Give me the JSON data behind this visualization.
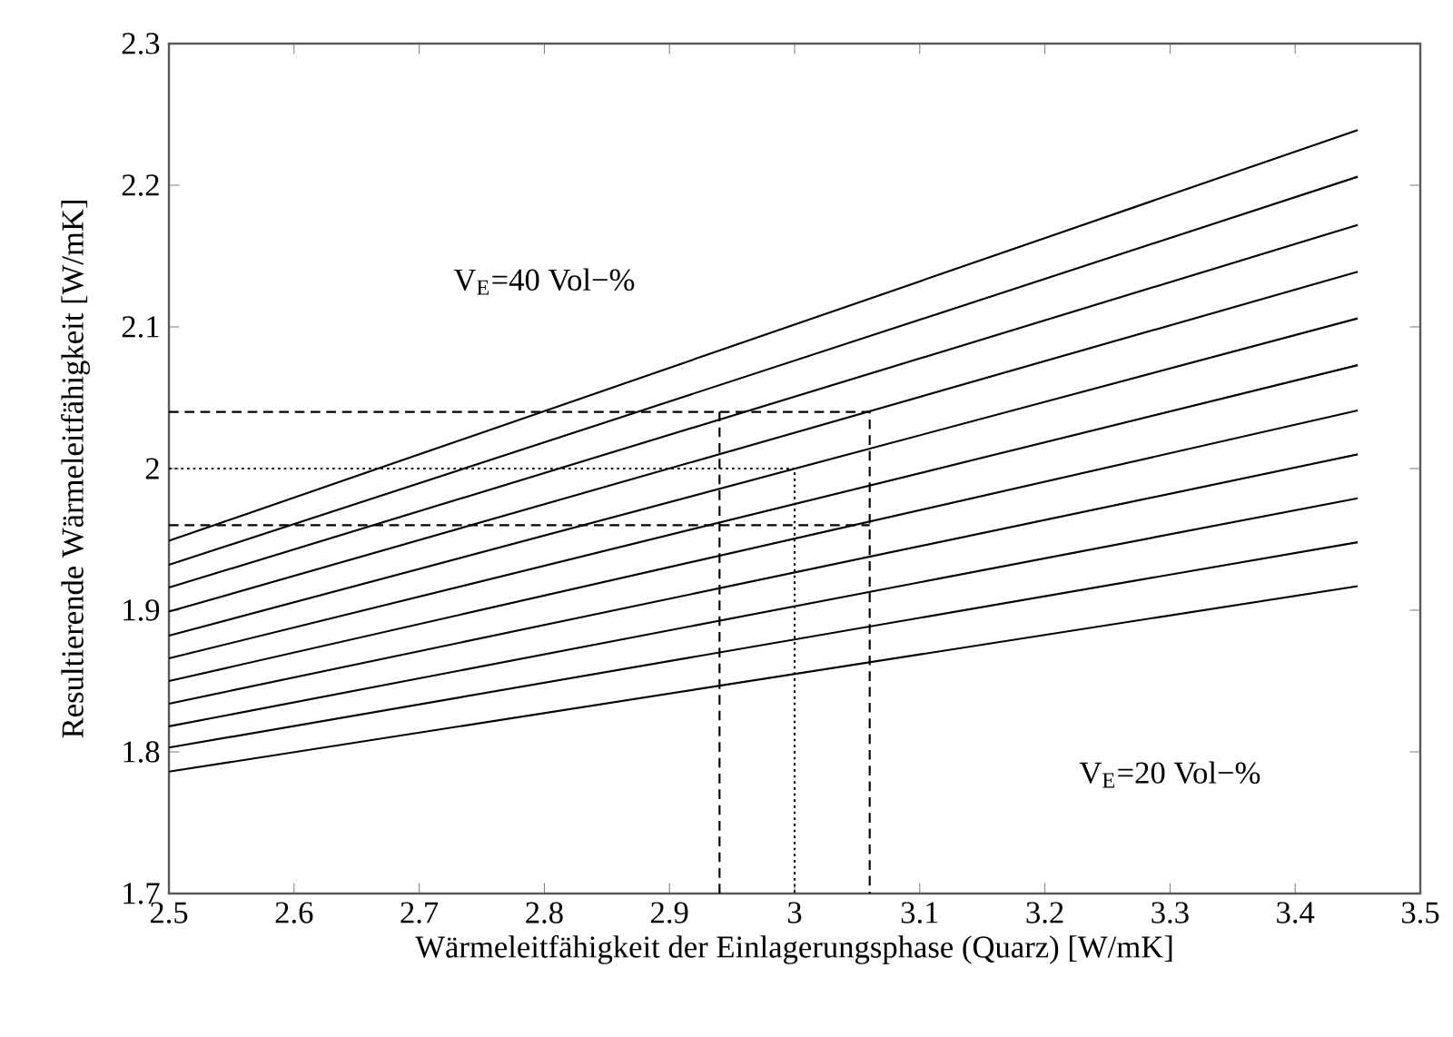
{
  "chart_data": {
    "type": "line",
    "xlabel": "Wärmeleitfähigkeit der Einlagerungsphase (Quarz) [W/mK]",
    "ylabel": "Resultierende Wärmeleitfähigkeit [W/mK]",
    "x": [
      2.5,
      3.45
    ],
    "xlim": [
      2.5,
      3.5
    ],
    "ylim": [
      1.7,
      2.3
    ],
    "xticks": [
      2.5,
      2.6,
      2.7,
      2.8,
      2.9,
      3,
      3.1,
      3.2,
      3.3,
      3.4,
      3.5
    ],
    "yticks": [
      1.7,
      1.8,
      1.9,
      2,
      2.1,
      2.2,
      2.3
    ],
    "grid": false,
    "line_style": "solid",
    "marker": "none",
    "series": [
      {
        "color": "#000000",
        "values": [
          1.786,
          1.917
        ]
      },
      {
        "color": "#000000",
        "values": [
          1.803,
          1.948
        ]
      },
      {
        "color": "#000000",
        "values": [
          1.818,
          1.979
        ]
      },
      {
        "color": "#000000",
        "values": [
          1.834,
          2.01
        ]
      },
      {
        "color": "#000000",
        "values": [
          1.85,
          2.041
        ]
      },
      {
        "color": "#000000",
        "values": [
          1.866,
          2.073
        ]
      },
      {
        "color": "#000000",
        "values": [
          1.882,
          2.106
        ]
      },
      {
        "color": "#000000",
        "values": [
          1.899,
          2.139
        ]
      },
      {
        "color": "#000000",
        "values": [
          1.916,
          2.172
        ]
      },
      {
        "color": "#000000",
        "values": [
          1.932,
          2.206
        ]
      },
      {
        "color": "#000000",
        "values": [
          1.949,
          2.239
        ]
      },
      {
        "color": "#000000",
        "line_style": "dashed",
        "x": [
          2.5,
          3.06,
          3.06
        ],
        "values": [
          2.04,
          2.04,
          1.7
        ]
      },
      {
        "color": "#000000",
        "line_style": "dashed",
        "x": [
          2.5,
          3.06
        ],
        "values": [
          1.96,
          1.96
        ]
      },
      {
        "color": "#000000",
        "line_style": "dashed",
        "x": [
          2.94,
          2.94
        ],
        "values": [
          1.7,
          2.04
        ]
      },
      {
        "color": "#000000",
        "line_style": "dotted",
        "x": [
          2.5,
          3.0,
          3.0
        ],
        "values": [
          2.0,
          2.0,
          1.7
        ]
      }
    ],
    "annotations": [
      "V$_{E}$=40 Vol−%",
      "V$_{E}$=20 Vol−%"
    ]
  }
}
